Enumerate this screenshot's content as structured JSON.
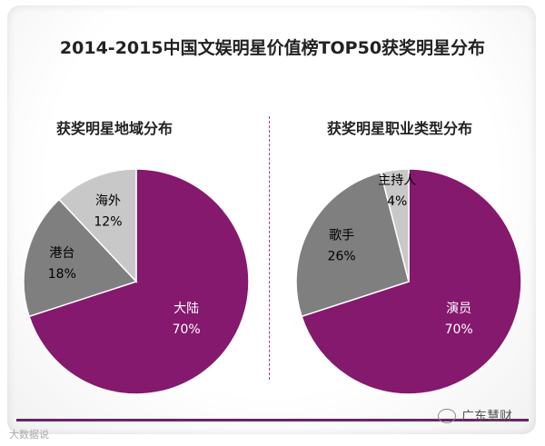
{
  "title": "2014-2015中国文娱明星价值榜TOP50获奖明星分布",
  "chart_data": [
    {
      "type": "pie",
      "title": "获奖明星地域分布",
      "slices": [
        {
          "label": "大陆",
          "value": 70,
          "pct_text": "70%",
          "color": "#85196e",
          "text_color": "#ffffff"
        },
        {
          "label": "港台",
          "value": 18,
          "pct_text": "18%",
          "color": "#7f7f7f",
          "text_color": "#000000"
        },
        {
          "label": "海外",
          "value": 12,
          "pct_text": "12%",
          "color": "#c8c8c8",
          "text_color": "#000000"
        }
      ]
    },
    {
      "type": "pie",
      "title": "获奖明星职业类型分布",
      "slices": [
        {
          "label": "演员",
          "value": 70,
          "pct_text": "70%",
          "color": "#85196e",
          "text_color": "#ffffff"
        },
        {
          "label": "歌手",
          "value": 26,
          "pct_text": "26%",
          "color": "#7f7f7f",
          "text_color": "#000000"
        },
        {
          "label": "主持人",
          "value": 4,
          "pct_text": "4%",
          "color": "#c8c8c8",
          "text_color": "#000000"
        }
      ]
    }
  ],
  "watermark_left": "大数据说",
  "watermark_right": "广东慧财"
}
